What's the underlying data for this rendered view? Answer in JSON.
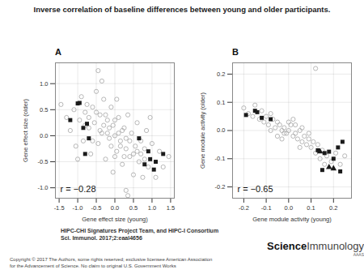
{
  "figure": {
    "title": "Inverse correlation of baseline differences between young and older participants.",
    "source": [
      "HIPC-CHI Signatures Project Team, and HIPC-I Consortium",
      "Sci. Immunol. 2017;2:eaal4656"
    ],
    "copyright": [
      "Copyright © 2017 The Authors, some rights reserved; exclusive licensee American Association",
      "for the Advancement of Science. No claim to original U.S. Government Works"
    ],
    "logo": [
      "Science",
      "Immunology",
      "AAAS"
    ]
  },
  "chart_data": [
    {
      "type": "scatter",
      "title": "A",
      "x_label": "Gene effect size (young)",
      "y_label": "Gene effect size (older)",
      "annotations": [
        "r = −0.28"
      ],
      "xlim": [
        -1.6,
        1.6
      ],
      "xticks": [
        {
          "value": -1.5,
          "label": "-1.5"
        },
        {
          "value": -1.0,
          "label": "-1.0"
        },
        {
          "value": -0.5,
          "label": "-0.5"
        },
        {
          "value": 0,
          "label": "0.0"
        },
        {
          "value": 0.5,
          "label": "0.5"
        },
        {
          "value": 1.0,
          "label": "1.0"
        },
        {
          "value": 1.5,
          "label": "1.5"
        }
      ],
      "ylim": [
        -1.2,
        1.4
      ],
      "yticks": [
        {
          "value": -1.0,
          "label": "-1.0"
        },
        {
          "value": -0.5,
          "label": "-0.5"
        },
        {
          "value": 0,
          "label": "0.0"
        },
        {
          "value": 0.5,
          "label": "0.5"
        },
        {
          "value": 1.0,
          "label": "1.0"
        }
      ],
      "grid": true,
      "series": [
        {
          "color": "#a6a6a6",
          "marker": "circle-open",
          "x": [
            -1.3,
            -1.2,
            -1.1,
            -1.05,
            -0.95,
            -0.9,
            -0.85,
            -0.8,
            -0.75,
            -0.7,
            -0.65,
            -0.6,
            -0.55,
            -0.5,
            -0.45,
            -0.4,
            -0.35,
            -0.3,
            -0.25,
            -0.2,
            -0.15,
            -0.1,
            -0.05,
            0.0,
            0.05,
            0.1,
            0.15,
            0.2,
            0.25,
            0.3,
            0.35,
            0.4,
            0.45,
            0.5,
            0.55,
            0.6,
            0.65,
            0.7,
            0.75,
            0.8,
            0.85,
            0.9,
            1.0,
            1.1,
            1.2,
            1.3,
            -0.6,
            -0.4,
            -0.2,
            0.0,
            0.2,
            0.4,
            0.6,
            -0.3,
            -0.1,
            0.1,
            0.3,
            -0.5,
            0.5,
            -0.8,
            0.8,
            0.0,
            -0.15,
            0.15,
            -0.7,
            0.7,
            -0.25,
            0.25,
            -1.45,
            1.45,
            -0.35,
            0.3,
            -1.0,
            0.95,
            0.05,
            -0.05,
            -0.45,
            0.35
          ],
          "values": [
            0.35,
            0.1,
            0.5,
            -0.2,
            0.3,
            0.75,
            -0.1,
            0.45,
            0.6,
            0.15,
            -0.35,
            0.55,
            0.25,
            0.85,
            -0.15,
            0.4,
            0.05,
            0.7,
            -0.45,
            0.3,
            -0.05,
            0.55,
            0.2,
            0.0,
            -0.3,
            0.35,
            -0.1,
            -0.55,
            0.15,
            -0.25,
            0.4,
            -0.4,
            0.05,
            -0.75,
            -0.2,
            0.25,
            -0.5,
            -0.1,
            -0.8,
            -0.25,
            0.1,
            -0.6,
            -0.15,
            -0.8,
            -0.3,
            -0.6,
            -0.1,
            0.1,
            0.05,
            0.3,
            0.1,
            -0.1,
            -0.3,
            0.2,
            -0.2,
            0.05,
            -0.05,
            0.45,
            -0.35,
            0.2,
            -0.45,
            -0.4,
            0.15,
            -0.2,
            0.35,
            -0.35,
            0.4,
            -0.4,
            0.6,
            -0.4,
            1.05,
            -1.05,
            -0.45,
            0.35,
            0.7,
            -0.7,
            1.25,
            -1.15
          ]
        },
        {
          "color": "#1a1a1a",
          "marker": "square",
          "x": [
            -1.0,
            -0.95,
            -1.2,
            -0.75,
            -0.85,
            -0.7,
            -0.8,
            0.65,
            0.9,
            0.95,
            0.8,
            1.1,
            1.05,
            1.3
          ],
          "values": [
            0.62,
            0.63,
            0.3,
            0.23,
            0.15,
            -0.05,
            -0.35,
            -0.05,
            -0.3,
            -0.45,
            -0.55,
            -0.5,
            -0.65,
            -0.35
          ]
        }
      ]
    },
    {
      "type": "scatter",
      "title": "B",
      "x_label": "Gene module activity (young)",
      "y_label": "Gene module activity (older)",
      "annotations": [
        "r = −0.65"
      ],
      "xlim": [
        -0.25,
        0.28
      ],
      "xticks": [
        -0.2,
        -0.1,
        {
          "value": 0,
          "label": "0.0"
        },
        0.1,
        0.2
      ],
      "ylim": [
        -0.24,
        0.24
      ],
      "yticks": [
        -0.2,
        -0.1,
        {
          "value": 0,
          "label": "0.0"
        },
        0.1,
        0.2
      ],
      "grid": true,
      "series": [
        {
          "color": "#a6a6a6",
          "marker": "circle-open",
          "x": [
            -0.2,
            -0.18,
            -0.16,
            -0.15,
            -0.13,
            -0.12,
            -0.11,
            -0.1,
            -0.09,
            -0.08,
            -0.07,
            -0.06,
            -0.05,
            -0.04,
            -0.03,
            -0.02,
            -0.01,
            0.0,
            0.01,
            0.02,
            0.03,
            0.04,
            0.05,
            0.06,
            0.07,
            0.08,
            0.09,
            0.1,
            0.11,
            0.12,
            0.13,
            0.14,
            0.15,
            0.16,
            0.17,
            0.19,
            0.21,
            0.23,
            0.25,
            0.12,
            -0.05,
            0.0,
            0.03,
            -0.02,
            0.06,
            -0.08,
            0.09,
            0.02,
            -0.03,
            0.05
          ],
          "values": [
            0.08,
            0.06,
            0.05,
            0.09,
            0.04,
            0.07,
            0.03,
            0.05,
            0.02,
            0.06,
            0.04,
            0.01,
            0.03,
            0.02,
            0.0,
            0.01,
            -0.01,
            0.0,
            0.02,
            -0.02,
            -0.01,
            -0.03,
            0.0,
            -0.04,
            -0.02,
            -0.05,
            -0.03,
            -0.06,
            -0.04,
            -0.08,
            -0.05,
            -0.1,
            -0.07,
            -0.12,
            -0.09,
            -0.11,
            -0.08,
            -0.12,
            -0.09,
            0.22,
            -0.02,
            0.03,
            0.02,
            -0.01,
            0.01,
            0.0,
            -0.01,
            0.04,
            -0.03,
            -0.06
          ]
        },
        {
          "color": "#1a1a1a",
          "marker": "square",
          "x": [
            -0.19,
            -0.15,
            -0.14,
            -0.12,
            -0.08,
            0.13,
            0.16,
            0.18,
            0.22,
            0.24,
            0.2,
            0.15,
            0.23
          ],
          "values": [
            0.055,
            0.07,
            0.065,
            0.045,
            0.04,
            -0.07,
            -0.08,
            -0.075,
            -0.06,
            -0.04,
            -0.1,
            -0.14,
            -0.145
          ]
        },
        {
          "color": "#1a1a1a",
          "marker": "triangle",
          "x": [
            0.14,
            0.18,
            0.2
          ],
          "values": [
            -0.075,
            -0.13,
            -0.135
          ]
        }
      ]
    }
  ]
}
